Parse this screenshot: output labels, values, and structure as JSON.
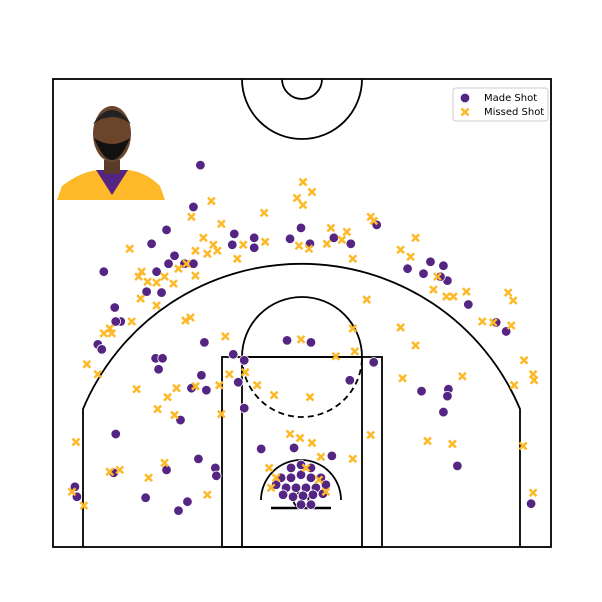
{
  "chart_data": {
    "type": "scatter",
    "xlim": [
      -250,
      250
    ],
    "ylim": [
      -47.5,
      422.5
    ],
    "legend": "upper right",
    "series": [
      {
        "name": "Made Shot",
        "color": "#552583",
        "marker": "o",
        "x": [
          -102,
          -109,
          -136,
          -151,
          -128,
          -118,
          -109,
          -134,
          -146,
          -199,
          -156,
          -141,
          -188,
          -182,
          -187,
          -205,
          -201,
          -147,
          -140,
          -144,
          -98,
          -101,
          -96,
          -111,
          -122,
          -187,
          -189,
          -228,
          -226,
          -157,
          -124,
          -115,
          -136,
          -104,
          -87,
          -86,
          -58,
          -64,
          -69,
          -58,
          -68,
          -70,
          -48,
          -48,
          -12,
          -1,
          8,
          49,
          32,
          75,
          -15,
          9,
          72,
          48,
          -41,
          30,
          -8,
          106,
          122,
          129,
          142,
          146,
          139,
          167,
          195,
          205,
          120,
          147,
          146,
          142,
          156,
          230,
          -11,
          -1,
          9,
          -21,
          -11,
          -1,
          9,
          19,
          -16,
          -6,
          4,
          14,
          -19,
          -9,
          1,
          11,
          21,
          -1,
          9,
          -26,
          24
        ],
        "y": [
          336,
          294,
          271,
          257,
          245,
          237,
          237,
          237,
          229,
          229,
          209,
          208,
          193,
          179,
          179,
          156,
          151,
          142,
          142,
          131,
          158,
          125,
          110,
          112,
          80,
          66,
          27,
          13,
          3,
          2,
          -11,
          -2,
          30,
          41,
          32,
          24,
          92,
          118,
          146,
          140,
          267,
          256,
          263,
          253,
          262,
          273,
          257,
          257,
          263,
          276,
          160,
          158,
          138,
          120,
          51,
          44,
          52,
          232,
          227,
          239,
          235,
          220,
          224,
          196,
          178,
          169,
          109,
          111,
          104,
          88,
          34,
          -4,
          32,
          35,
          32,
          22,
          22,
          25,
          22,
          22,
          12,
          12,
          12,
          12,
          5,
          3,
          4,
          5,
          6,
          -5,
          -5,
          15,
          15
        ]
      },
      {
        "name": "Missed Shot",
        "color": "#FDB927",
        "marker": "x",
        "x": [
          1,
          10,
          -5,
          1,
          -91,
          -111,
          -38,
          -81,
          -99,
          -89,
          -85,
          -95,
          -107,
          -173,
          -161,
          -164,
          -155,
          -146,
          -138,
          -129,
          -124,
          -107,
          -116,
          -162,
          -146,
          -171,
          -193,
          -199,
          -191,
          -216,
          -205,
          -117,
          -112,
          -77,
          -59,
          -65,
          -37,
          -3,
          7,
          25,
          29,
          40,
          45,
          51,
          69,
          72,
          99,
          109,
          114,
          65,
          51,
          53,
          99,
          114,
          136,
          132,
          145,
          152,
          165,
          181,
          192,
          210,
          207,
          212,
          223,
          232,
          233,
          213,
          161,
          101,
          34,
          -1,
          -45,
          -28,
          8,
          -73,
          -57,
          -83,
          -126,
          -107,
          -166,
          -135,
          -145,
          -128,
          -81,
          -227,
          -183,
          -193,
          -138,
          -154,
          -95,
          -231,
          -219,
          -12,
          -2,
          10,
          69,
          126,
          151,
          222,
          232,
          51,
          19,
          -33,
          -26,
          -31,
          17,
          24,
          4
        ],
        "y": [
          319,
          309,
          303,
          296,
          300,
          284,
          288,
          277,
          263,
          256,
          250,
          247,
          250,
          252,
          229,
          224,
          219,
          218,
          224,
          217,
          232,
          225,
          237,
          202,
          195,
          179,
          172,
          167,
          167,
          136,
          126,
          180,
          183,
          164,
          256,
          242,
          259,
          255,
          252,
          257,
          273,
          261,
          269,
          242,
          284,
          280,
          251,
          244,
          263,
          201,
          172,
          149,
          173,
          155,
          224,
          211,
          204,
          204,
          209,
          179,
          178,
          175,
          208,
          200,
          140,
          126,
          120,
          115,
          124,
          122,
          144,
          161,
          115,
          105,
          103,
          126,
          128,
          115,
          112,
          114,
          111,
          103,
          91,
          85,
          86,
          58,
          30,
          28,
          37,
          22,
          5,
          8,
          -6,
          66,
          62,
          57,
          65,
          59,
          56,
          54,
          7,
          41,
          43,
          32,
          22,
          12,
          20,
          8,
          32
        ]
      }
    ]
  }
}
